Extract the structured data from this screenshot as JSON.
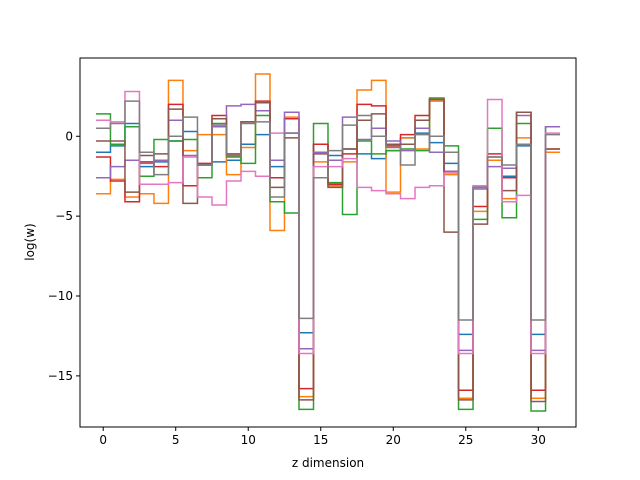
{
  "chart_data": {
    "type": "line",
    "drawstyle": "steps-mid",
    "xlabel": "z dimension",
    "ylabel": "log(w)",
    "xlim": [
      -1.6,
      32.6
    ],
    "ylim": [
      -18.2,
      4.9
    ],
    "xticks": [
      0,
      5,
      10,
      15,
      20,
      25,
      30
    ],
    "yticks": [
      0,
      -5,
      -10,
      -15
    ],
    "ytick_labels": [
      "0",
      "−5",
      "−10",
      "−15"
    ],
    "grid": false,
    "legend": "none",
    "x": [
      0,
      1,
      2,
      3,
      4,
      5,
      6,
      7,
      8,
      9,
      10,
      11,
      12,
      13,
      14,
      15,
      16,
      17,
      18,
      19,
      20,
      21,
      22,
      23,
      24,
      25,
      26,
      27,
      28,
      29,
      30,
      31
    ],
    "series": [
      {
        "color": "#1f77b4",
        "values": [
          -1.0,
          -0.6,
          0.8,
          -1.9,
          -1.6,
          -0.3,
          0.3,
          -1.8,
          -1.6,
          -1.5,
          -0.5,
          0.1,
          -1.9,
          0.2,
          -12.3,
          -0.5,
          -1.2,
          -0.8,
          -1.1,
          -1.4,
          -0.9,
          -0.1,
          0.2,
          -0.4,
          -1.7,
          -12.4,
          -3.2,
          -1.5,
          -2.5,
          -0.6,
          -12.4,
          -1.0
        ]
      },
      {
        "color": "#ff7f0e",
        "values": [
          -3.6,
          -2.7,
          -3.8,
          -3.6,
          -4.2,
          3.5,
          -0.9,
          0.1,
          0.1,
          -2.4,
          -0.7,
          3.9,
          -5.9,
          1.2,
          -16.3,
          -1.6,
          -3.1,
          -1.6,
          2.9,
          3.5,
          -3.5,
          -0.1,
          -0.8,
          2.2,
          -2.4,
          -16.4,
          -4.7,
          -1.5,
          -3.9,
          -0.1,
          -16.4,
          -1.0
        ]
      },
      {
        "color": "#2ca02c",
        "values": [
          1.4,
          -0.5,
          0.6,
          -2.5,
          -0.2,
          -0.3,
          -0.2,
          -2.6,
          0.8,
          -1.3,
          -1.7,
          1.3,
          -4.1,
          -4.8,
          -17.1,
          0.8,
          -2.9,
          -4.9,
          -0.3,
          -1.1,
          -0.9,
          -0.8,
          -0.9,
          2.4,
          -0.6,
          -17.1,
          -5.2,
          0.5,
          -5.1,
          0.8,
          -17.2,
          0.6
        ]
      },
      {
        "color": "#d62728",
        "values": [
          -1.3,
          -2.8,
          -4.1,
          -1.6,
          -1.9,
          2.0,
          -3.1,
          -1.7,
          1.3,
          -1.2,
          0.9,
          2.2,
          -2.6,
          1.1,
          -15.8,
          -0.5,
          -3.0,
          -1.1,
          2.0,
          1.9,
          -0.6,
          0.1,
          1.3,
          2.3,
          -2.2,
          -15.9,
          -4.4,
          -1.1,
          -2.6,
          1.5,
          -15.9,
          -0.8
        ]
      },
      {
        "color": "#9467bd",
        "values": [
          -2.6,
          -1.9,
          -1.5,
          -1.7,
          -1.5,
          1.0,
          -1.2,
          -1.8,
          0.6,
          1.9,
          2.0,
          1.6,
          -1.5,
          1.5,
          -13.3,
          -1.0,
          -1.5,
          1.2,
          -0.2,
          0.5,
          -0.3,
          -0.9,
          0.5,
          -1.0,
          -2.2,
          -13.4,
          -3.3,
          -1.9,
          -2.0,
          1.3,
          -13.4,
          0.6
        ]
      },
      {
        "color": "#8c564b",
        "values": [
          -0.3,
          -0.3,
          -3.5,
          -1.2,
          -1.1,
          1.7,
          -4.2,
          -1.8,
          1.1,
          -1.1,
          0.9,
          2.1,
          -3.2,
          -0.1,
          -16.5,
          -1.1,
          -3.2,
          -0.8,
          1.0,
          1.4,
          -0.5,
          -0.5,
          1.0,
          2.3,
          -6.0,
          -16.5,
          -5.5,
          -1.3,
          -3.4,
          1.5,
          -16.6,
          -0.8
        ]
      },
      {
        "color": "#e377c2",
        "values": [
          1.0,
          0.9,
          2.8,
          -3.0,
          -3.0,
          -2.9,
          -1.3,
          -3.8,
          -4.3,
          -2.8,
          -2.2,
          -2.5,
          0.2,
          0.2,
          -13.6,
          -1.9,
          -1.9,
          -1.4,
          -3.2,
          -3.4,
          -3.6,
          -3.9,
          -3.2,
          -3.1,
          -2.3,
          -13.6,
          -3.1,
          2.3,
          -4.1,
          -3.7,
          -13.6,
          0.2
        ]
      },
      {
        "color": "#7f7f7f",
        "values": [
          0.5,
          0.8,
          2.2,
          -1.0,
          -2.4,
          0.0,
          1.2,
          -1.8,
          0.7,
          -1.2,
          0.8,
          0.9,
          -3.8,
          0.2,
          -11.4,
          -2.6,
          -0.9,
          0.7,
          1.3,
          0.0,
          -0.7,
          -1.8,
          0.1,
          0.0,
          -1.0,
          -11.5,
          -3.2,
          -1.3,
          -1.8,
          -0.5,
          -11.5,
          0.1
        ]
      }
    ]
  }
}
